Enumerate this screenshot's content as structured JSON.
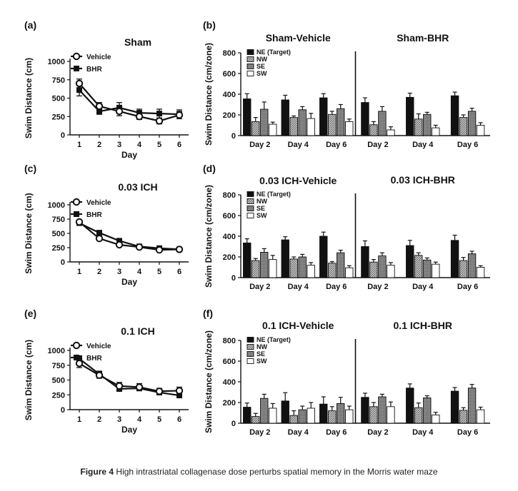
{
  "caption": {
    "label": "Figure 4",
    "text": "High intrastriatal collagenase dose perturbs spatial memory in the Morris water maze"
  },
  "colors": {
    "ink": "#111111",
    "ne": "#111111",
    "nw": "#9a9a9a",
    "se": "#7a7a7a",
    "sw": "#ffffff"
  },
  "chart_data": [
    {
      "panel": "(a)",
      "type": "line",
      "title": "Sham",
      "xlabel": "Day",
      "ylabel": "Swim  Distance  (cm)",
      "x": [
        1,
        2,
        3,
        4,
        5,
        6
      ],
      "ylim": [
        0,
        1000
      ],
      "yticks": [
        0,
        250,
        500,
        750,
        1000
      ],
      "ytick_labels": [
        "0",
        "250",
        "500",
        "750",
        "1000"
      ],
      "series": [
        {
          "name": "Vehicle",
          "marker": "open-circle",
          "values": [
            700,
            390,
            320,
            250,
            190,
            270
          ],
          "errors": [
            60,
            50,
            60,
            40,
            40,
            50
          ]
        },
        {
          "name": "BHR",
          "marker": "filled-square",
          "values": [
            610,
            320,
            370,
            300,
            290,
            280
          ],
          "errors": [
            80,
            40,
            70,
            50,
            60,
            60
          ]
        }
      ]
    },
    {
      "panel": "(c)",
      "type": "line",
      "title": "0.03 ICH",
      "xlabel": "Day",
      "ylabel": "Swim  Distance  (cm)",
      "x": [
        1,
        2,
        3,
        4,
        5,
        6
      ],
      "ylim": [
        0,
        1000
      ],
      "yticks": [
        0,
        250,
        500,
        750,
        1000
      ],
      "ytick_labels": [
        "0",
        "250",
        "500",
        "750",
        "1000"
      ],
      "series": [
        {
          "name": "Vehicle",
          "marker": "open-circle",
          "values": [
            700,
            410,
            300,
            260,
            210,
            220
          ],
          "errors": [
            30,
            30,
            25,
            20,
            20,
            20
          ]
        },
        {
          "name": "BHR",
          "marker": "filled-square",
          "values": [
            680,
            510,
            370,
            270,
            240,
            220
          ],
          "errors": [
            40,
            40,
            30,
            25,
            25,
            20
          ]
        }
      ]
    },
    {
      "panel": "(e)",
      "type": "line",
      "title": "0.1 ICH",
      "xlabel": "Day",
      "ylabel": "Swim  Distance  (cm)",
      "x": [
        1,
        2,
        3,
        4,
        5,
        6
      ],
      "ylim": [
        0,
        1000
      ],
      "yticks": [
        0,
        250,
        500,
        750,
        1000
      ],
      "ytick_labels": [
        "0",
        "250",
        "500",
        "750",
        "1000"
      ],
      "series": [
        {
          "name": "Vehicle",
          "marker": "open-circle",
          "values": [
            780,
            580,
            400,
            380,
            310,
            320
          ],
          "errors": [
            70,
            50,
            60,
            60,
            50,
            60
          ]
        },
        {
          "name": "BHR",
          "marker": "filled-square",
          "values": [
            860,
            600,
            350,
            360,
            290,
            240
          ],
          "errors": [
            50,
            50,
            40,
            40,
            40,
            30
          ]
        }
      ]
    },
    {
      "panel": "(b)",
      "type": "bar",
      "ylabel": "Swim Distance (cm/zone)",
      "ylim": [
        0,
        800
      ],
      "yticks": [
        0,
        200,
        400,
        600,
        800
      ],
      "ytick_labels": [
        "0",
        "200",
        "400",
        "600",
        "800"
      ],
      "legend": [
        "NE (Target)",
        "NW",
        "SE",
        "SW"
      ],
      "groups": [
        {
          "title": "Sham-Vehicle",
          "categories": [
            "Day 2",
            "Day 4",
            "Day 6"
          ],
          "values": [
            [
              355,
              135,
              255,
              110
            ],
            [
              345,
              175,
              250,
              165
            ],
            [
              365,
              205,
              260,
              135
            ]
          ],
          "errors": [
            [
              50,
              40,
              70,
              20
            ],
            [
              45,
              15,
              30,
              50
            ],
            [
              40,
              30,
              40,
              25
            ]
          ]
        },
        {
          "title": "Sham-BHR",
          "categories": [
            "Day 2",
            "Day 4",
            "Day 6"
          ],
          "values": [
            [
              320,
              105,
              235,
              55
            ],
            [
              370,
              160,
              205,
              75
            ],
            [
              385,
              175,
              235,
              100
            ]
          ],
          "errors": [
            [
              45,
              30,
              45,
              30
            ],
            [
              40,
              50,
              20,
              25
            ],
            [
              35,
              25,
              30,
              25
            ]
          ]
        }
      ]
    },
    {
      "panel": "(d)",
      "type": "bar",
      "ylabel": "Swim Distance (cm/zone)",
      "ylim": [
        0,
        800
      ],
      "yticks": [
        0,
        200,
        400,
        600,
        800
      ],
      "ytick_labels": [
        "0",
        "200",
        "400",
        "600",
        "800"
      ],
      "legend": [
        "NE (Target)",
        "NW",
        "SE",
        "SW"
      ],
      "groups": [
        {
          "title": "0.03 ICH-Vehicle",
          "categories": [
            "Day 2",
            "Day 4",
            "Day 6"
          ],
          "values": [
            [
              335,
              165,
              245,
              175
            ],
            [
              365,
              180,
              200,
              120
            ],
            [
              400,
              140,
              240,
              95
            ]
          ],
          "errors": [
            [
              40,
              20,
              35,
              40
            ],
            [
              30,
              20,
              25,
              25
            ],
            [
              40,
              15,
              25,
              20
            ]
          ]
        },
        {
          "title": "0.03 ICH-BHR",
          "categories": [
            "Day 2",
            "Day 4",
            "Day 6"
          ],
          "values": [
            [
              300,
              150,
              210,
              120
            ],
            [
              310,
              215,
              170,
              130
            ],
            [
              360,
              165,
              230,
              100
            ]
          ],
          "errors": [
            [
              55,
              25,
              30,
              25
            ],
            [
              50,
              25,
              20,
              20
            ],
            [
              50,
              30,
              25,
              15
            ]
          ]
        }
      ]
    },
    {
      "panel": "(f)",
      "type": "bar",
      "ylabel": "Swim Distance (cm/zone)",
      "ylim": [
        0,
        800
      ],
      "yticks": [
        0,
        200,
        400,
        600,
        800
      ],
      "ytick_labels": [
        "0",
        "200",
        "400",
        "600",
        "800"
      ],
      "legend": [
        "NE (Target)",
        "NW",
        "SE",
        "SW"
      ],
      "groups": [
        {
          "title": "0.1 ICH-Vehicle",
          "categories": [
            "Day 2",
            "Day 4",
            "Day 6"
          ],
          "values": [
            [
              155,
              65,
              240,
              145
            ],
            [
              215,
              75,
              130,
              145
            ],
            [
              185,
              120,
              190,
              130
            ]
          ],
          "errors": [
            [
              40,
              30,
              40,
              45
            ],
            [
              80,
              45,
              35,
              55
            ],
            [
              70,
              40,
              60,
              35
            ]
          ]
        },
        {
          "title": "0.1 ICH-BHR",
          "categories": [
            "Day 2",
            "Day 4",
            "Day 6"
          ],
          "values": [
            [
              250,
              160,
              255,
              160
            ],
            [
              340,
              150,
              245,
              80
            ],
            [
              310,
              125,
              340,
              130
            ]
          ],
          "errors": [
            [
              40,
              40,
              25,
              45
            ],
            [
              40,
              45,
              20,
              25
            ],
            [
              35,
              25,
              35,
              25
            ]
          ]
        }
      ]
    }
  ]
}
